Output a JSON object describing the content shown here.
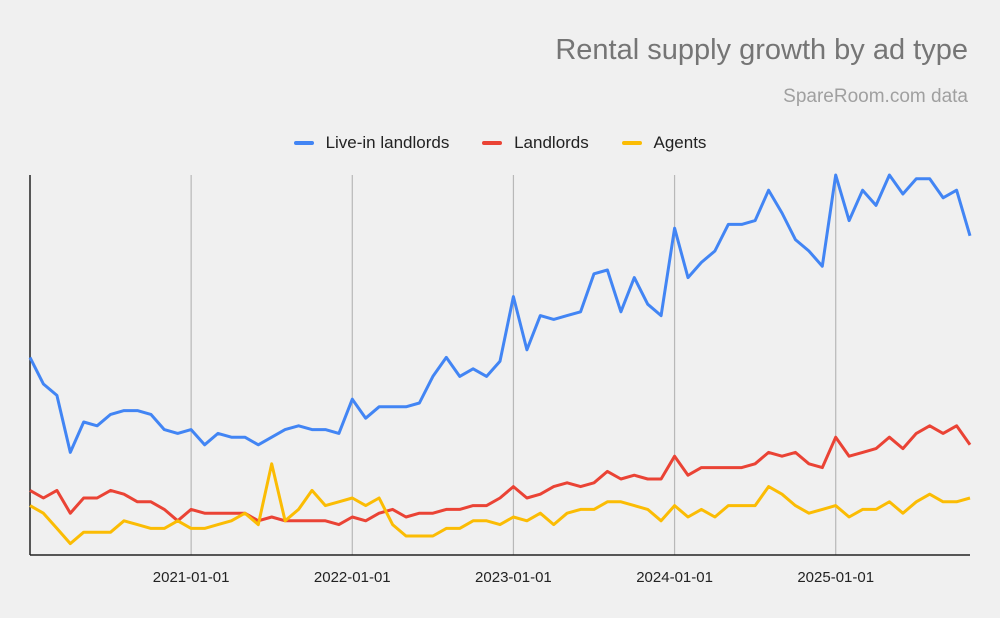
{
  "chart_data": {
    "type": "line",
    "title": "Rental supply growth by ad type",
    "subtitle": "SpareRoom.com data",
    "legend_position": "top",
    "grid": "vertical yearly gridlines",
    "xlabel": "",
    "ylabel": "",
    "y_units_note": "no y-axis printed; values are relative on a 0-100 scale of the plot height",
    "ylim": [
      0,
      100
    ],
    "xlim": [
      "2020-01",
      "2025-11"
    ],
    "x_tick_labels": [
      "2021-01-01",
      "2022-01-01",
      "2023-01-01",
      "2024-01-01",
      "2025-01-01"
    ],
    "x": [
      "2020-01",
      "2020-02",
      "2020-03",
      "2020-04",
      "2020-05",
      "2020-06",
      "2020-07",
      "2020-08",
      "2020-09",
      "2020-10",
      "2020-11",
      "2020-12",
      "2021-01",
      "2021-02",
      "2021-03",
      "2021-04",
      "2021-05",
      "2021-06",
      "2021-07",
      "2021-08",
      "2021-09",
      "2021-10",
      "2021-11",
      "2021-12",
      "2022-01",
      "2022-02",
      "2022-03",
      "2022-04",
      "2022-05",
      "2022-06",
      "2022-07",
      "2022-08",
      "2022-09",
      "2022-10",
      "2022-11",
      "2022-12",
      "2023-01",
      "2023-02",
      "2023-03",
      "2023-04",
      "2023-05",
      "2023-06",
      "2023-07",
      "2023-08",
      "2023-09",
      "2023-10",
      "2023-11",
      "2023-12",
      "2024-01",
      "2024-02",
      "2024-03",
      "2024-04",
      "2024-05",
      "2024-06",
      "2024-07",
      "2024-08",
      "2024-09",
      "2024-10",
      "2024-11",
      "2024-12",
      "2025-01",
      "2025-02",
      "2025-03",
      "2025-04",
      "2025-05",
      "2025-06",
      "2025-07",
      "2025-08",
      "2025-09",
      "2025-10",
      "2025-11"
    ],
    "series": [
      {
        "name": "Live-in landlords",
        "color": "#4285f4",
        "values": [
          52,
          45,
          42,
          27,
          35,
          34,
          37,
          38,
          38,
          37,
          33,
          32,
          33,
          29,
          32,
          31,
          31,
          29,
          31,
          33,
          34,
          33,
          33,
          32,
          41,
          36,
          39,
          39,
          39,
          40,
          47,
          52,
          47,
          49,
          47,
          51,
          68,
          54,
          63,
          62,
          63,
          64,
          74,
          75,
          64,
          73,
          66,
          63,
          86,
          73,
          77,
          80,
          87,
          87,
          88,
          96,
          90,
          83,
          80,
          76,
          100,
          88,
          96,
          92,
          100,
          95,
          99,
          99,
          94,
          96,
          84
        ]
      },
      {
        "name": "Landlords",
        "color": "#ea4335",
        "values": [
          17,
          15,
          17,
          11,
          15,
          15,
          17,
          16,
          14,
          14,
          12,
          9,
          12,
          11,
          11,
          11,
          11,
          9,
          10,
          9,
          9,
          9,
          9,
          8,
          10,
          9,
          11,
          12,
          10,
          11,
          11,
          12,
          12,
          13,
          13,
          15,
          18,
          15,
          16,
          18,
          19,
          18,
          19,
          22,
          20,
          21,
          20,
          20,
          26,
          21,
          23,
          23,
          23,
          23,
          24,
          27,
          26,
          27,
          24,
          23,
          31,
          26,
          27,
          28,
          31,
          28,
          32,
          34,
          32,
          34,
          29
        ]
      },
      {
        "name": "Agents",
        "color": "#fbbc04",
        "values": [
          13,
          11,
          7,
          3,
          6,
          6,
          6,
          9,
          8,
          7,
          7,
          9,
          7,
          7,
          8,
          9,
          11,
          8,
          24,
          9,
          12,
          17,
          13,
          14,
          15,
          13,
          15,
          8,
          5,
          5,
          5,
          7,
          7,
          9,
          9,
          8,
          10,
          9,
          11,
          8,
          11,
          12,
          12,
          14,
          14,
          13,
          12,
          9,
          13,
          10,
          12,
          10,
          13,
          13,
          13,
          18,
          16,
          13,
          11,
          12,
          13,
          10,
          12,
          12,
          14,
          11,
          14,
          16,
          14,
          14,
          15
        ]
      }
    ]
  }
}
